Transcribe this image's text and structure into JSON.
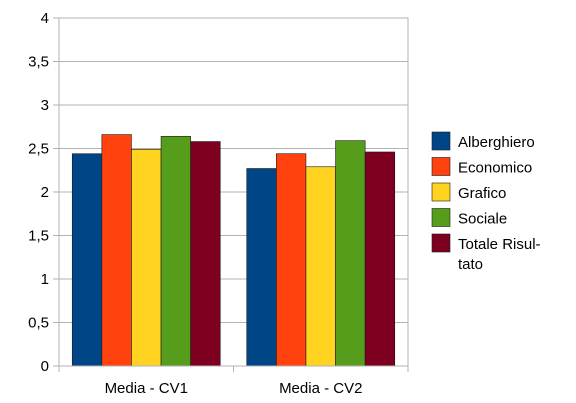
{
  "chart_data": {
    "type": "bar",
    "categories": [
      "Media - CV1",
      "Media - CV2"
    ],
    "series": [
      {
        "name": "Alberghiero",
        "color": "#004586",
        "values": [
          2.44,
          2.27
        ]
      },
      {
        "name": "Economico",
        "color": "#ff420e",
        "values": [
          2.66,
          2.44
        ]
      },
      {
        "name": "Grafico",
        "color": "#ffd320",
        "values": [
          2.49,
          2.29
        ]
      },
      {
        "name": "Sociale",
        "color": "#579d1c",
        "values": [
          2.64,
          2.59
        ]
      },
      {
        "name": "Totale Risultato",
        "legend_lines": [
          "Totale Risul-",
          "tato"
        ],
        "color": "#7e0021",
        "values": [
          2.58,
          2.46
        ]
      }
    ],
    "yticks": [
      "0",
      "0,5",
      "1",
      "1,5",
      "2",
      "2,5",
      "3",
      "3,5",
      "4"
    ],
    "ylim": [
      0,
      4
    ],
    "grid": true,
    "legend_position": "right",
    "title": "",
    "xlabel": "",
    "ylabel": ""
  }
}
